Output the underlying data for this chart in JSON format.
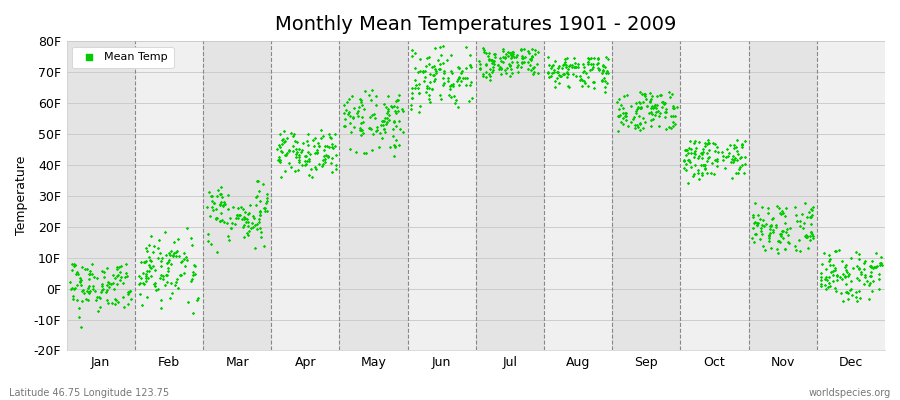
{
  "title": "Monthly Mean Temperatures 1901 - 2009",
  "ylabel": "Temperature",
  "subtitle_left": "Latitude 46.75 Longitude 123.75",
  "subtitle_right": "worldspecies.org",
  "ylim": [
    -20,
    80
  ],
  "yticks": [
    -20,
    -10,
    0,
    10,
    20,
    30,
    40,
    50,
    60,
    70,
    80
  ],
  "ytick_labels": [
    "-20F",
    "-10F",
    "0F",
    "10F",
    "20F",
    "30F",
    "40F",
    "50F",
    "60F",
    "70F",
    "80F"
  ],
  "month_labels": [
    "Jan",
    "Feb",
    "Mar",
    "Apr",
    "May",
    "Jun",
    "Jul",
    "Aug",
    "Sep",
    "Oct",
    "Nov",
    "Dec"
  ],
  "dot_color": "#00cc00",
  "dot_size": 3,
  "background_color": "#ffffff",
  "plot_bg_color": "#f0f0f0",
  "band_color_dark": "#e4e4e4",
  "band_color_light": "#f0f0f0",
  "grid_color": "#cccccc",
  "dashed_line_color": "#888888",
  "title_fontsize": 14,
  "axis_label_fontsize": 9,
  "tick_fontsize": 9,
  "mean_temps_by_month": {
    "Jan": {
      "mean": 1,
      "std": 5,
      "min": -16,
      "max": 8,
      "n": 109
    },
    "Feb": {
      "mean": 7,
      "std": 6,
      "min": -8,
      "max": 20,
      "n": 109
    },
    "Mar": {
      "mean": 24,
      "std": 6,
      "min": 10,
      "max": 36,
      "n": 109
    },
    "Apr": {
      "mean": 44,
      "std": 4,
      "min": 34,
      "max": 52,
      "n": 109
    },
    "May": {
      "mean": 55,
      "std": 5,
      "min": 40,
      "max": 65,
      "n": 109
    },
    "Jun": {
      "mean": 68,
      "std": 5,
      "min": 55,
      "max": 79,
      "n": 109
    },
    "Jul": {
      "mean": 73,
      "std": 3,
      "min": 63,
      "max": 78,
      "n": 109
    },
    "Aug": {
      "mean": 71,
      "std": 3,
      "min": 63,
      "max": 75,
      "n": 109
    },
    "Sep": {
      "mean": 58,
      "std": 4,
      "min": 50,
      "max": 64,
      "n": 109
    },
    "Oct": {
      "mean": 43,
      "std": 4,
      "min": 32,
      "max": 48,
      "n": 109
    },
    "Nov": {
      "mean": 20,
      "std": 4,
      "min": 11,
      "max": 28,
      "n": 109
    },
    "Dec": {
      "mean": 4,
      "std": 5,
      "min": -6,
      "max": 13,
      "n": 109
    }
  }
}
